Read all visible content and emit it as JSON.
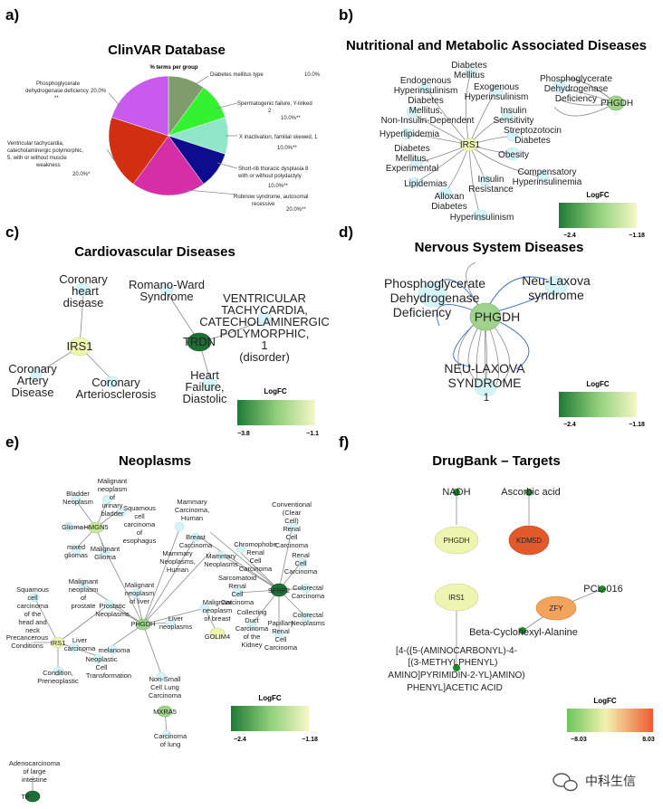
{
  "panels": {
    "a": {
      "letter": "a)",
      "title": "ClinVAR Database",
      "subtitle": "% terms per group"
    },
    "b": {
      "letter": "b)",
      "title": "Nutritional and Metabolic Associated Diseases"
    },
    "c": {
      "letter": "c)",
      "title": "Cardiovascular Diseases"
    },
    "d": {
      "letter": "d)",
      "title": "Nervous System Diseases"
    },
    "e": {
      "letter": "e)",
      "title": "Neoplasms"
    },
    "f": {
      "letter": "f)",
      "title": "DrugBank – Targets"
    }
  },
  "chart_data": {
    "type": "pie",
    "title": "ClinVAR Database",
    "subtitle": "% terms per group",
    "slices": [
      {
        "label": "Diabetes mellitus type",
        "value": 10.0,
        "pct_text": "10.0%",
        "color": "#7f9c6c"
      },
      {
        "label": "Spermatogenic failure, Y-linked 2",
        "value": 10.0,
        "pct_text": "10.0%**",
        "color": "#33f22f"
      },
      {
        "label": "X inactivation, familial skewed, 1",
        "value": 10.0,
        "pct_text": "10.0%**",
        "color": "#90e6c8"
      },
      {
        "label": "Short-rib thoracic dysplasia 8 with or without polydactyly",
        "value": 10.0,
        "pct_text": "10.0%**",
        "color": "#0c0c8c"
      },
      {
        "label": "Robinow syndrome, autosomal recessive",
        "value": 20.0,
        "pct_text": "20.0%**",
        "color": "#d52ea6"
      },
      {
        "label": "Ventricular tachycardia, catecholaminergic polymorphic, 5, with or without muscle weakness",
        "value": 20.0,
        "pct_text": "20.0%*",
        "color": "#d22f12"
      },
      {
        "label": "Phosphoglycerate dehydrogenase deficiency",
        "value": 20.0,
        "pct_text": "20.0%",
        "color": "#c85bee"
      }
    ]
  },
  "labels": {
    "a_phosph": [
      "Phosphoglycerate",
      "dehydrogenase deficiency",
      "**"
    ],
    "a_phosph_pct": "20.0%",
    "a_diab": "Diabetes mellitus type",
    "a_diab_pct": "10.0%",
    "a_sperm": [
      "Spermatogenic failure, Y-linked",
      "2"
    ],
    "a_sperm_pct": "10.0%**",
    "a_xinact": "X inactivation, familial skewed, 1",
    "a_xinact_pct": "10.0%**",
    "a_vent": [
      "Ventricular tachycardia,",
      "catecholaminergic polymorphic,",
      "5, with or without muscle",
      "weakness"
    ],
    "a_vent_pct": "20.0%*",
    "a_short": [
      "Short-rib thoracic dysplasia 8",
      "with or without polydactyly"
    ],
    "a_short_pct": "10.0%**",
    "a_robinow": [
      "Robinow syndrome, autosomal",
      "recessive"
    ],
    "a_robinow_pct": "20.0%**",
    "b_dm": [
      "Diabetes",
      "Mellitus"
    ],
    "b_endo": [
      "Endogenous",
      "Hyperinsulinism"
    ],
    "b_exo": [
      "Exogenous",
      "Hyperinsulinism"
    ],
    "b_dmnid": [
      "Diabetes",
      "Mellitus,",
      "Non-Insulin-Dependent"
    ],
    "b_ins_sens": [
      "Insulin",
      "Sensitivity"
    ],
    "b_hyperlip": "Hyperlipidemia",
    "b_strep": [
      "Streptozotocin",
      "Diabetes"
    ],
    "b_irs1": "IRS1",
    "b_dmexp": [
      "Diabetes",
      "Mellitus,",
      "Experimental"
    ],
    "b_obesity": "Obesity",
    "b_compens": [
      "Compensatory",
      "Hyperinsulinemia"
    ],
    "b_lipid": "Lipidemias",
    "b_ins_res": [
      "Insulin",
      "Resistance"
    ],
    "b_allox": [
      "Alloxan",
      "Diabetes"
    ],
    "b_hyperins": "Hyperinsulinism",
    "b_phgdh_def": [
      "Phosphoglycerate",
      "Dehydrogenase",
      "Deficiency"
    ],
    "b_phgdh": "PHGDH",
    "c_chd": [
      "Coronary",
      "heart",
      "disease"
    ],
    "c_irs1": "IRS1",
    "c_cad": [
      "Coronary",
      "Artery",
      "Disease"
    ],
    "c_cas": [
      "Coronary",
      "Arteriosclerosis"
    ],
    "c_rw": [
      "Romano-Ward",
      "Syndrome"
    ],
    "c_vt": [
      "VENTRICULAR",
      "TACHYCARDIA,",
      "CATECHOLAMINERGIC",
      "POLYMORPHIC,",
      "1",
      "(disorder)"
    ],
    "c_trdn": "TRDN",
    "c_hf": [
      "Heart",
      "Failure,",
      "Diastolic"
    ],
    "d_pgdd": [
      "Phosphoglycerate",
      "Dehydrogenase",
      "Deficiency"
    ],
    "d_nls": [
      "Neu-Laxova",
      "syndrome"
    ],
    "d_phgdh": "PHGDH",
    "d_nlsu": [
      "NEU-LAXOVA",
      "SYNDROME",
      "1"
    ],
    "e_mnub": [
      "Malignant",
      "neoplasm",
      "of",
      "urinary",
      "bladder"
    ],
    "e_bladder": [
      "Bladder",
      "Neoplasm"
    ],
    "e_scce": [
      "Squamous",
      "cell",
      "carcinoma",
      "of",
      "esophagus"
    ],
    "e_glioma": "Glioma",
    "e_hmgn5": "HMGN5",
    "e_mixed": [
      "mixed",
      "gliomas"
    ],
    "e_mglioma": [
      "Malignant",
      "Glioma"
    ],
    "e_mammc": [
      "Mammary",
      "Carcinoma,",
      "Human"
    ],
    "e_conv": [
      "Conventional",
      "(Clear",
      "Cell)",
      "Renal",
      "Cell",
      "Carcinoma"
    ],
    "e_breast": [
      "Breast",
      "Carcinoma"
    ],
    "e_chromo": [
      "Chromophobe",
      "Renal",
      "Cell",
      "Carcinoma"
    ],
    "e_mammn": [
      "Mammary",
      "Neoplasms,",
      "Human"
    ],
    "e_mammneo": [
      "Mammary",
      "Neoplasms"
    ],
    "e_rcc": [
      "Renal",
      "Cell",
      "Carcinoma"
    ],
    "e_mnp": [
      "Malignant",
      "neoplasm",
      "of",
      "prostate"
    ],
    "e_prost": [
      "Prostatic",
      "Neoplasms"
    ],
    "e_mnl": [
      "Malignant",
      "neoplasm",
      "of liver"
    ],
    "e_sarc": [
      "Sarcomatoid",
      "Renal",
      "Cell",
      "Carcinoma"
    ],
    "e_sfrp2": "SFRP2",
    "e_crc": [
      "Colorectal",
      "Carcinoma"
    ],
    "e_sccn": [
      "Squamous",
      "cell",
      "carcinoma",
      "of the",
      "head and",
      "neck"
    ],
    "e_phgdh": "PHGDH",
    "e_livn": [
      "Liver",
      "neoplasms"
    ],
    "e_mnb": [
      "Malignant",
      "neoplasm",
      "of breast"
    ],
    "e_crn": [
      "Colorectal",
      "Neoplasms"
    ],
    "e_cdc": [
      "Collecting",
      "Duct",
      "Carcinoma",
      "of the",
      "Kidney"
    ],
    "e_prc": [
      "Papillary",
      "Renal",
      "Cell",
      "Carcinoma"
    ],
    "e_golim4": "GOLIM4",
    "e_precan": [
      "Precancerous",
      "Conditions"
    ],
    "e_irs1": "IRS1",
    "e_livc": [
      "Liver",
      "carcinoma"
    ],
    "e_melan": "melanoma",
    "e_neoct": [
      "Neoplastic",
      "Cell",
      "Transformation"
    ],
    "e_condp": [
      "Condition,",
      "Preneoplastic"
    ],
    "e_nsclc": [
      "Non-Small",
      "Cell Lung",
      "Carcinoma"
    ],
    "e_mxra5": "MXRA5",
    "e_lungc": [
      "Carcinoma",
      "of lung"
    ],
    "e_adeno": [
      "Adenocarcinoma",
      "of large",
      "intestine"
    ],
    "e_tp": "TP",
    "f_nadh": "NADH",
    "f_asc": "Ascorbic acid",
    "f_phgdh": "PHGDH",
    "f_kdm5d": "KDM5D",
    "f_irs1": "IRS1",
    "f_pcl": "PCL-016",
    "f_zfy": "ZFY",
    "f_beta": "Beta-Cyclohexyl-Alanine",
    "f_drug": [
      "[4-({5-(AMINOCARBONYL)-4-",
      "[(3-METHYLPHENYL)",
      "AMINO]PYRIMIDIN-2-YL}AMINO)",
      "PHENYL]ACETIC ACID"
    ]
  },
  "legends": {
    "b": {
      "title": "LogFC",
      "min": "−2.4",
      "max": "−1.18"
    },
    "c": {
      "title": "LogFC",
      "min": "−3.8",
      "max": "−1.1"
    },
    "d": {
      "title": "LogFC",
      "min": "−2.4",
      "max": "−1.18"
    },
    "e": {
      "title": "LogFC",
      "min": "−2.4",
      "max": "−1.18"
    },
    "f": {
      "title": "LogFC",
      "min": "−8.03",
      "max": "8.03"
    }
  },
  "watermark": {
    "text": "中科生信",
    "icon": "wechat-icon"
  },
  "colors": {
    "leaf": "#d6f4f7",
    "gene_light": "#eef5b0",
    "gene_green": "#9fd38d",
    "gene_dark": "#1f6e35",
    "drug_dot": "#1a8a2a",
    "kdm5d": "#e2592a",
    "zfy": "#f2a35c"
  }
}
